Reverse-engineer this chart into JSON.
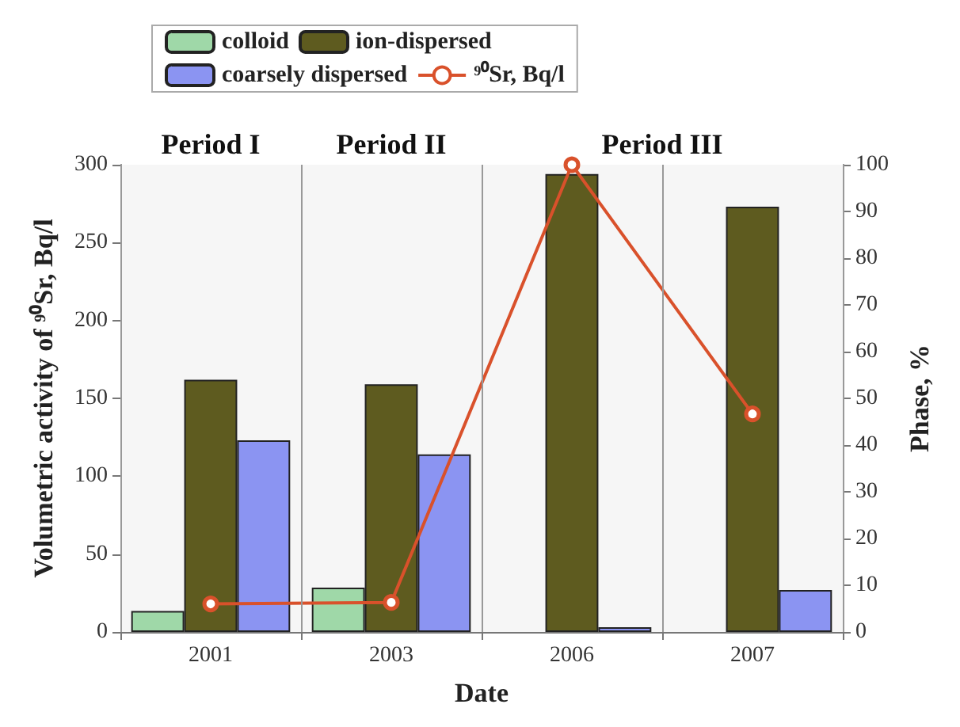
{
  "chart_data": {
    "type": "bar",
    "xlabel": "Date",
    "ylabel": "Volumetric activity of ⁹⁰Sr, Bq/l",
    "y2label": "Phase, %",
    "categories": [
      "2001",
      "2003",
      "2006",
      "2007"
    ],
    "series": [
      {
        "name": "colloid",
        "color": "#9fd8a8",
        "axis": "y2",
        "values": [
          4.5,
          9.5,
          null,
          null
        ]
      },
      {
        "name": "ion-dispersed",
        "color": "#5e5b1f",
        "axis": "y2",
        "values": [
          54,
          53,
          98,
          91
        ]
      },
      {
        "name": "coarsely dispersed",
        "color": "#8b94f2",
        "axis": "y2",
        "values": [
          41,
          38,
          1,
          9
        ]
      },
      {
        "name": "⁹⁰Sr, Bq/l",
        "type": "line",
        "color": "#d9512b",
        "values": [
          18,
          19,
          300,
          140
        ]
      }
    ],
    "ylim": [
      0,
      300
    ],
    "yticks": [
      0,
      50,
      100,
      150,
      200,
      250,
      300
    ],
    "y2lim": [
      0,
      100
    ],
    "y2ticks": [
      0,
      10,
      20,
      30,
      40,
      50,
      60,
      70,
      80,
      90,
      100
    ],
    "bands": [
      {
        "axis": "x",
        "from": "2001",
        "to": "2001",
        "label": "Period I",
        "color": "#f6f6f6"
      },
      {
        "axis": "x",
        "from": "2003",
        "to": "2003",
        "label": "Period II",
        "color": "#f6f6f6"
      },
      {
        "axis": "x",
        "from": "2006",
        "to": "2007",
        "label": "Period III",
        "color": "#f6f6f6"
      }
    ],
    "grid": "x",
    "legend": "top",
    "marker": "circle",
    "line_style": "solid"
  }
}
